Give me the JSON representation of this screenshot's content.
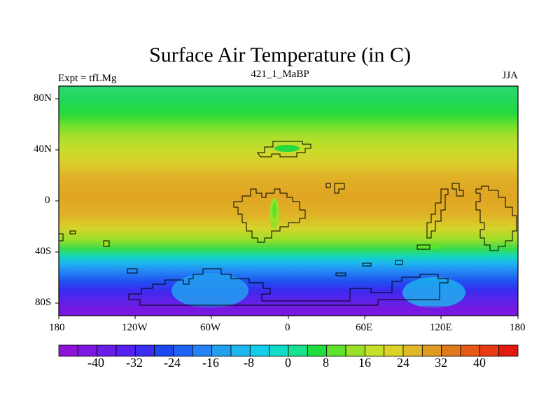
{
  "map": {
    "title": "Surface Air Temperature (in C)",
    "left_string": "Expt = tfLMg",
    "center_string": "421_1_MaBP",
    "right_string": "JJA"
  },
  "axes": {
    "lon_labels": [
      "180",
      "120W",
      "60W",
      "0",
      "60E",
      "120E",
      "180"
    ],
    "lat_labels": [
      "80N",
      "40N",
      "0",
      "40S",
      "80S"
    ]
  },
  "colorbar": {
    "labels": [
      "-40",
      "-32",
      "-24",
      "-16",
      "-8",
      "0",
      "8",
      "16",
      "24",
      "32",
      "40"
    ],
    "colors": [
      "#8f12d9",
      "#7d18e0",
      "#6a1de8",
      "#5520f0",
      "#3a2cf0",
      "#1c46f0",
      "#1f64f5",
      "#2683f5",
      "#22a0f0",
      "#1eb6ee",
      "#14cde8",
      "#12dbc8",
      "#18e28e",
      "#20dc3e",
      "#5ee22a",
      "#9be028",
      "#c4de2a",
      "#dcd22a",
      "#e0b828",
      "#e09a22",
      "#e07a1e",
      "#e65a18",
      "#e83a14",
      "#e01a10"
    ]
  }
}
